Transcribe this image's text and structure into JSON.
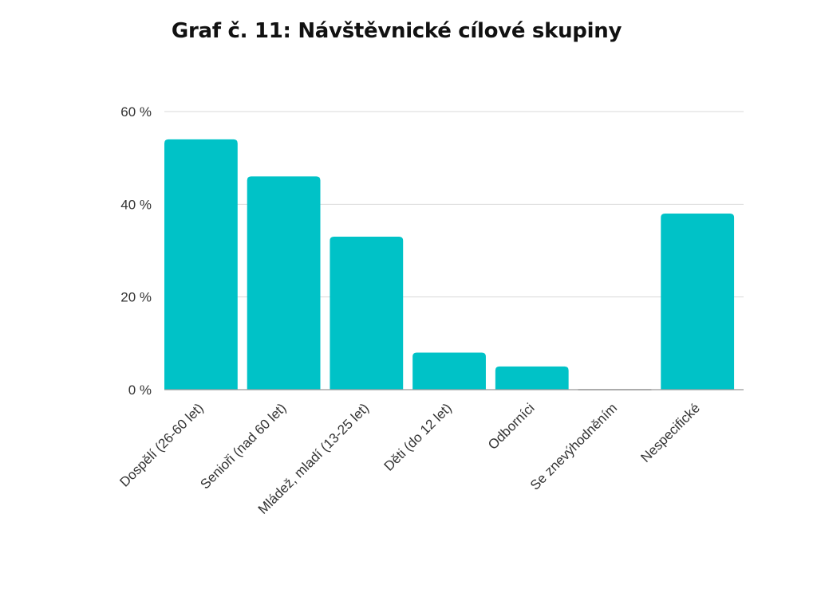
{
  "chart_data": {
    "type": "bar",
    "title": "Graf č. 11: Návštěvnické cílové skupiny",
    "xlabel": "",
    "ylabel": "",
    "categories": [
      "Dospělí (26-60 let)",
      "Senioři (nad 60 let)",
      "Mládež, mladí (13-25 let)",
      "Děti (do 12 let)",
      "Odborníci",
      "Se znevýhodněním",
      "Nespecifické"
    ],
    "values": [
      54,
      46,
      33,
      8,
      5,
      0,
      38
    ],
    "ylim": [
      0,
      60
    ],
    "y_ticks": [
      0,
      20,
      40,
      60
    ],
    "y_tick_labels": [
      "0 %",
      "20 %",
      "40 %",
      "60 %"
    ],
    "grid": true,
    "legend": "none",
    "bar_color": "#00C2C7"
  }
}
